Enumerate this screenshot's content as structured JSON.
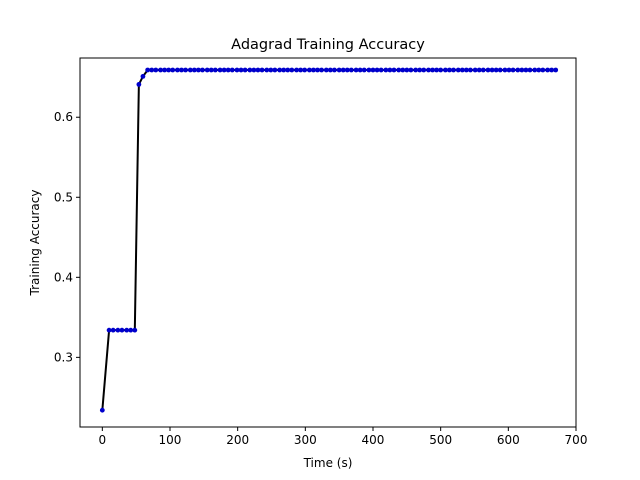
{
  "chart_data": {
    "type": "line",
    "title": "Adagrad Training Accuracy",
    "xlabel": "Time (s)",
    "ylabel": "Training Accuracy",
    "xlim": [
      -33,
      700
    ],
    "ylim": [
      0.213,
      0.674
    ],
    "xticks": [
      0,
      100,
      200,
      300,
      400,
      500,
      600,
      700
    ],
    "yticks": [
      0.3,
      0.4,
      0.5,
      0.6
    ],
    "grid": false,
    "line_color": "#000000",
    "marker_color": "#0000cc",
    "series": [
      {
        "x": [
          0,
          10,
          16,
          23,
          29,
          36,
          42,
          48,
          54,
          60,
          67,
          73,
          79,
          86,
          92,
          98,
          104,
          111,
          117,
          123,
          130,
          136,
          142,
          148,
          155,
          161,
          167,
          174,
          180,
          186,
          192,
          199,
          205,
          211,
          218,
          224,
          230,
          236,
          243,
          249,
          255,
          262,
          268,
          274,
          280,
          287,
          293,
          299,
          306,
          312,
          318,
          324,
          331,
          337,
          343,
          350,
          356,
          362,
          368,
          375,
          381,
          387,
          394,
          400,
          406,
          412,
          419,
          425,
          431,
          438,
          444,
          450,
          456,
          463,
          469,
          475,
          482,
          488,
          494,
          500,
          507,
          513,
          519,
          526,
          532,
          538,
          544,
          551,
          557,
          563,
          570,
          576,
          582,
          588,
          595,
          601,
          607,
          614,
          620,
          626,
          632,
          639,
          645,
          651,
          658,
          664,
          670
        ],
        "y": [
          0.234,
          0.334,
          0.334,
          0.334,
          0.334,
          0.334,
          0.334,
          0.334,
          0.641,
          0.651,
          0.659,
          0.659,
          0.659,
          0.659,
          0.659,
          0.659,
          0.659,
          0.659,
          0.659,
          0.659,
          0.659,
          0.659,
          0.659,
          0.659,
          0.659,
          0.659,
          0.659,
          0.659,
          0.659,
          0.659,
          0.659,
          0.659,
          0.659,
          0.659,
          0.659,
          0.659,
          0.659,
          0.659,
          0.659,
          0.659,
          0.659,
          0.659,
          0.659,
          0.659,
          0.659,
          0.659,
          0.659,
          0.659,
          0.659,
          0.659,
          0.659,
          0.659,
          0.659,
          0.659,
          0.659,
          0.659,
          0.659,
          0.659,
          0.659,
          0.659,
          0.659,
          0.659,
          0.659,
          0.659,
          0.659,
          0.659,
          0.659,
          0.659,
          0.659,
          0.659,
          0.659,
          0.659,
          0.659,
          0.659,
          0.659,
          0.659,
          0.659,
          0.659,
          0.659,
          0.659,
          0.659,
          0.659,
          0.659,
          0.659,
          0.659,
          0.659,
          0.659,
          0.659,
          0.659,
          0.659,
          0.659,
          0.659,
          0.659,
          0.659,
          0.659,
          0.659,
          0.659,
          0.659,
          0.659,
          0.659,
          0.659,
          0.659,
          0.659,
          0.659,
          0.659,
          0.659,
          0.659
        ]
      }
    ]
  }
}
